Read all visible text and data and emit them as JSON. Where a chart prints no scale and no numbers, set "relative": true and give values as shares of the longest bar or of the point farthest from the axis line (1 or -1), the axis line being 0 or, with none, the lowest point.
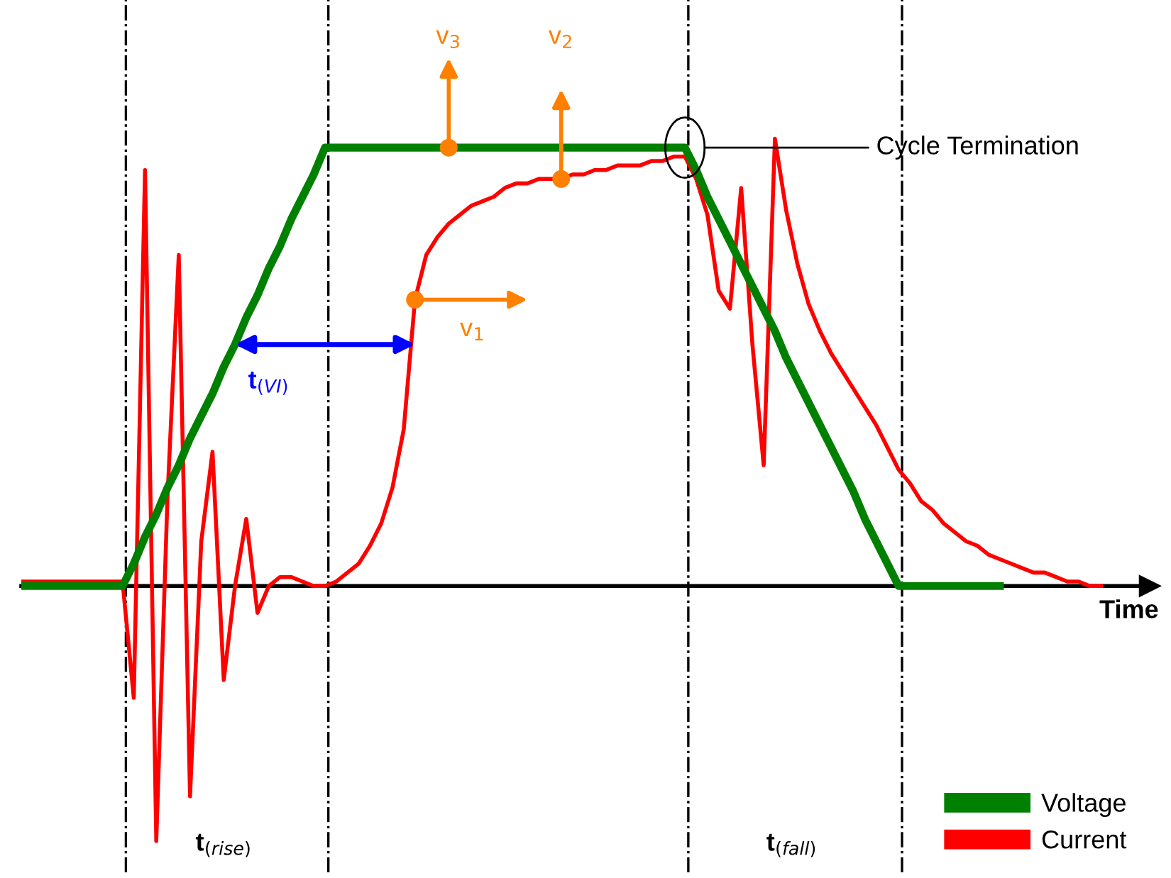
{
  "chart_data": {
    "type": "line",
    "relative": true,
    "xlabel": "Time",
    "legend": "bottom right",
    "marker": "none",
    "line_style": "solid",
    "categories": [
      null,
      null,
      null,
      null,
      null,
      null,
      null,
      null,
      null,
      null,
      null,
      null,
      null,
      null,
      null,
      null,
      null,
      null,
      null,
      null,
      null,
      null,
      null,
      null,
      null,
      null,
      null,
      null,
      null,
      null,
      null,
      null,
      null,
      null,
      null,
      null,
      null,
      null,
      null,
      null,
      null,
      null,
      null,
      null,
      null,
      null,
      null,
      null,
      null,
      null,
      null,
      null,
      null,
      null,
      null,
      null,
      null,
      null,
      null,
      null,
      null,
      null,
      null,
      null,
      null,
      null,
      null,
      null,
      null,
      null,
      null,
      null,
      null,
      null,
      null,
      null,
      null,
      null,
      null,
      null,
      null,
      null,
      null,
      null,
      null,
      null,
      null,
      null,
      null,
      null,
      null,
      null,
      null,
      null,
      null,
      null,
      null
    ],
    "series": [
      {
        "name": "Voltage",
        "color": "#008000",
        "values": [
          0,
          0,
          0,
          0,
          0,
          0,
          0,
          0,
          0,
          0,
          0.05,
          0.11,
          0.16,
          0.22,
          0.27,
          0.33,
          0.38,
          0.43,
          0.49,
          0.54,
          0.6,
          0.65,
          0.71,
          0.76,
          0.82,
          0.87,
          0.92,
          0.98,
          0.98,
          0.98,
          0.98,
          0.98,
          0.98,
          0.98,
          0.98,
          0.98,
          0.98,
          0.98,
          0.98,
          0.98,
          0.98,
          0.98,
          0.98,
          0.98,
          0.98,
          0.98,
          0.98,
          0.98,
          0.98,
          0.98,
          0.98,
          0.98,
          0.98,
          0.98,
          0.98,
          0.98,
          0.98,
          0.98,
          0.98,
          0.98,
          0.93,
          0.87,
          0.82,
          0.77,
          0.72,
          0.67,
          0.62,
          0.57,
          0.51,
          0.46,
          0.41,
          0.36,
          0.31,
          0.26,
          0.21,
          0.15,
          0.1,
          0.05,
          0,
          0,
          0,
          0,
          0,
          0,
          0,
          0,
          0,
          0,
          null,
          null,
          null,
          null,
          null,
          null,
          null,
          null,
          null
        ]
      },
      {
        "name": "Current",
        "color": "#ff0000",
        "values": [
          0.01,
          0.01,
          0.01,
          0.01,
          0.01,
          0.01,
          0.01,
          0.01,
          0.01,
          0.01,
          -0.25,
          0.93,
          -0.57,
          0.2,
          0.74,
          -0.47,
          0.1,
          0.3,
          -0.21,
          0,
          0.15,
          -0.06,
          0,
          0.02,
          0.02,
          0.01,
          0,
          0,
          0.01,
          0.03,
          0.05,
          0.09,
          0.14,
          0.22,
          0.35,
          0.64,
          0.74,
          0.78,
          0.81,
          0.83,
          0.85,
          0.86,
          0.87,
          0.89,
          0.9,
          0.9,
          0.91,
          0.91,
          0.91,
          0.92,
          0.92,
          0.93,
          0.93,
          0.94,
          0.94,
          0.94,
          0.95,
          0.95,
          0.96,
          0.96,
          0.91,
          0.83,
          0.66,
          0.62,
          0.89,
          0.54,
          0.27,
          1.0,
          0.84,
          0.72,
          0.63,
          0.57,
          0.52,
          0.48,
          0.44,
          0.4,
          0.36,
          0.31,
          0.26,
          0.23,
          0.19,
          0.17,
          0.14,
          0.12,
          0.1,
          0.09,
          0.07,
          0.06,
          0.05,
          0.04,
          0.03,
          0.03,
          0.02,
          0.01,
          0.01,
          0,
          0
        ]
      }
    ],
    "annotations": [
      "v$_{1}$",
      "v$_{2}$",
      "v$_{3}$",
      "Cycle Termination",
      "t$_{(VI)}$",
      "t$_{(rise)}$",
      "t$_{(fall)}$"
    ]
  }
}
